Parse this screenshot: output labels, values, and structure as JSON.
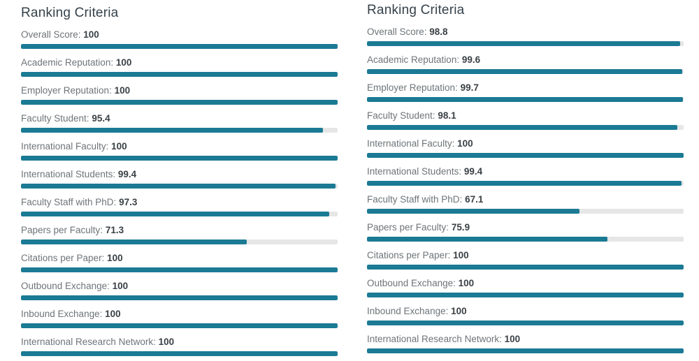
{
  "colors": {
    "bar_fill": "#1b7a94",
    "bar_track": "#e6e6e6",
    "title_text": "#35414a",
    "label_text": "#6e7478",
    "value_text": "#3a4145"
  },
  "panels": [
    {
      "title": "Ranking Criteria",
      "criteria": [
        {
          "label": "Overall Score:",
          "value": "100",
          "pct": 100
        },
        {
          "label": "Academic Reputation:",
          "value": "100",
          "pct": 100
        },
        {
          "label": "Employer Reputation:",
          "value": "100",
          "pct": 100
        },
        {
          "label": "Faculty Student:",
          "value": "95.4",
          "pct": 95.4
        },
        {
          "label": "International Faculty:",
          "value": "100",
          "pct": 100
        },
        {
          "label": "International Students:",
          "value": "99.4",
          "pct": 99.4
        },
        {
          "label": "Faculty Staff with PhD:",
          "value": "97.3",
          "pct": 97.3
        },
        {
          "label": "Papers per Faculty:",
          "value": "71.3",
          "pct": 71.3
        },
        {
          "label": "Citations per Paper:",
          "value": "100",
          "pct": 100
        },
        {
          "label": "Outbound Exchange:",
          "value": "100",
          "pct": 100
        },
        {
          "label": "Inbound Exchange:",
          "value": "100",
          "pct": 100
        },
        {
          "label": "International Research Network:",
          "value": "100",
          "pct": 100
        }
      ]
    },
    {
      "title": "Ranking Criteria",
      "criteria": [
        {
          "label": "Overall Score:",
          "value": "98.8",
          "pct": 98.8
        },
        {
          "label": "Academic Reputation:",
          "value": "99.6",
          "pct": 99.6
        },
        {
          "label": "Employer Reputation:",
          "value": "99.7",
          "pct": 99.7
        },
        {
          "label": "Faculty Student:",
          "value": "98.1",
          "pct": 98.1
        },
        {
          "label": "International Faculty:",
          "value": "100",
          "pct": 100
        },
        {
          "label": "International Students:",
          "value": "99.4",
          "pct": 99.4
        },
        {
          "label": "Faculty Staff with PhD:",
          "value": "67.1",
          "pct": 67.1
        },
        {
          "label": "Papers per Faculty:",
          "value": "75.9",
          "pct": 75.9
        },
        {
          "label": "Citations per Paper:",
          "value": "100",
          "pct": 100
        },
        {
          "label": "Outbound Exchange:",
          "value": "100",
          "pct": 100
        },
        {
          "label": "Inbound Exchange:",
          "value": "100",
          "pct": 100
        },
        {
          "label": "International Research Network:",
          "value": "100",
          "pct": 100
        }
      ]
    }
  ],
  "chart_data": [
    {
      "type": "bar",
      "orientation": "horizontal",
      "title": "Ranking Criteria",
      "categories": [
        "Overall Score",
        "Academic Reputation",
        "Employer Reputation",
        "Faculty Student",
        "International Faculty",
        "International Students",
        "Faculty Staff with PhD",
        "Papers per Faculty",
        "Citations per Paper",
        "Outbound Exchange",
        "Inbound Exchange",
        "International Research Network"
      ],
      "values": [
        100,
        100,
        100,
        95.4,
        100,
        99.4,
        97.3,
        71.3,
        100,
        100,
        100,
        100
      ],
      "xlabel": "",
      "ylabel": "",
      "xlim": [
        0,
        100
      ],
      "grid": false,
      "legend": "none",
      "bar_color": "#1b7a94",
      "track_color": "#e6e6e6"
    },
    {
      "type": "bar",
      "orientation": "horizontal",
      "title": "Ranking Criteria",
      "categories": [
        "Overall Score",
        "Academic Reputation",
        "Employer Reputation",
        "Faculty Student",
        "International Faculty",
        "International Students",
        "Faculty Staff with PhD",
        "Papers per Faculty",
        "Citations per Paper",
        "Outbound Exchange",
        "Inbound Exchange",
        "International Research Network"
      ],
      "values": [
        98.8,
        99.6,
        99.7,
        98.1,
        100,
        99.4,
        67.1,
        75.9,
        100,
        100,
        100,
        100
      ],
      "xlabel": "",
      "ylabel": "",
      "xlim": [
        0,
        100
      ],
      "grid": false,
      "legend": "none",
      "bar_color": "#1b7a94",
      "track_color": "#e6e6e6"
    }
  ]
}
